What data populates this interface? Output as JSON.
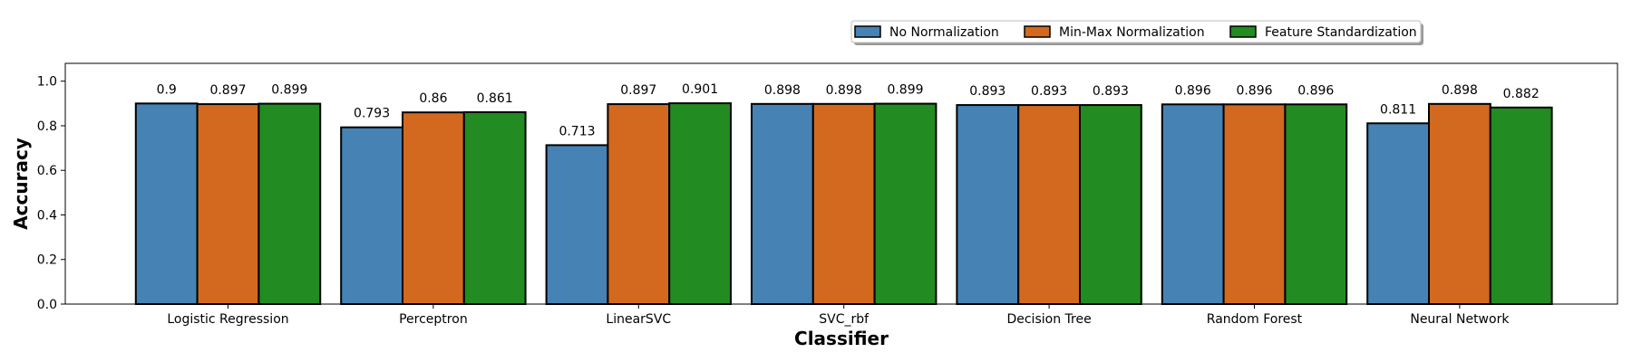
{
  "chart_data": {
    "type": "bar",
    "categories": [
      "Logistic Regression",
      "Perceptron",
      "LinearSVC",
      "SVC_rbf",
      "Decision Tree",
      "Random Forest",
      "Neural Network"
    ],
    "series": [
      {
        "name": "No Normalization",
        "color": "#4682B4",
        "values": [
          0.9,
          0.793,
          0.713,
          0.898,
          0.893,
          0.896,
          0.811
        ],
        "labels": [
          "0.9",
          "0.793",
          "0.713",
          "0.898",
          "0.893",
          "0.896",
          "0.811"
        ]
      },
      {
        "name": "Min-Max Normalization",
        "color": "#D2691E",
        "values": [
          0.897,
          0.86,
          0.897,
          0.898,
          0.893,
          0.896,
          0.898
        ],
        "labels": [
          "0.897",
          "0.86",
          "0.897",
          "0.898",
          "0.893",
          "0.896",
          "0.898"
        ]
      },
      {
        "name": "Feature Standardization",
        "color": "#228B22",
        "values": [
          0.899,
          0.861,
          0.901,
          0.899,
          0.893,
          0.896,
          0.882
        ],
        "labels": [
          "0.899",
          "0.861",
          "0.901",
          "0.899",
          "0.893",
          "0.896",
          "0.882"
        ]
      }
    ],
    "xlabel": "Classifier",
    "ylabel": "Accuracy",
    "ylim": [
      0,
      1.08
    ],
    "yticks": [
      "0.0",
      "0.2",
      "0.4",
      "0.6",
      "0.8",
      "1.0"
    ],
    "grid": false,
    "legend_position": "top-right, above plot"
  }
}
